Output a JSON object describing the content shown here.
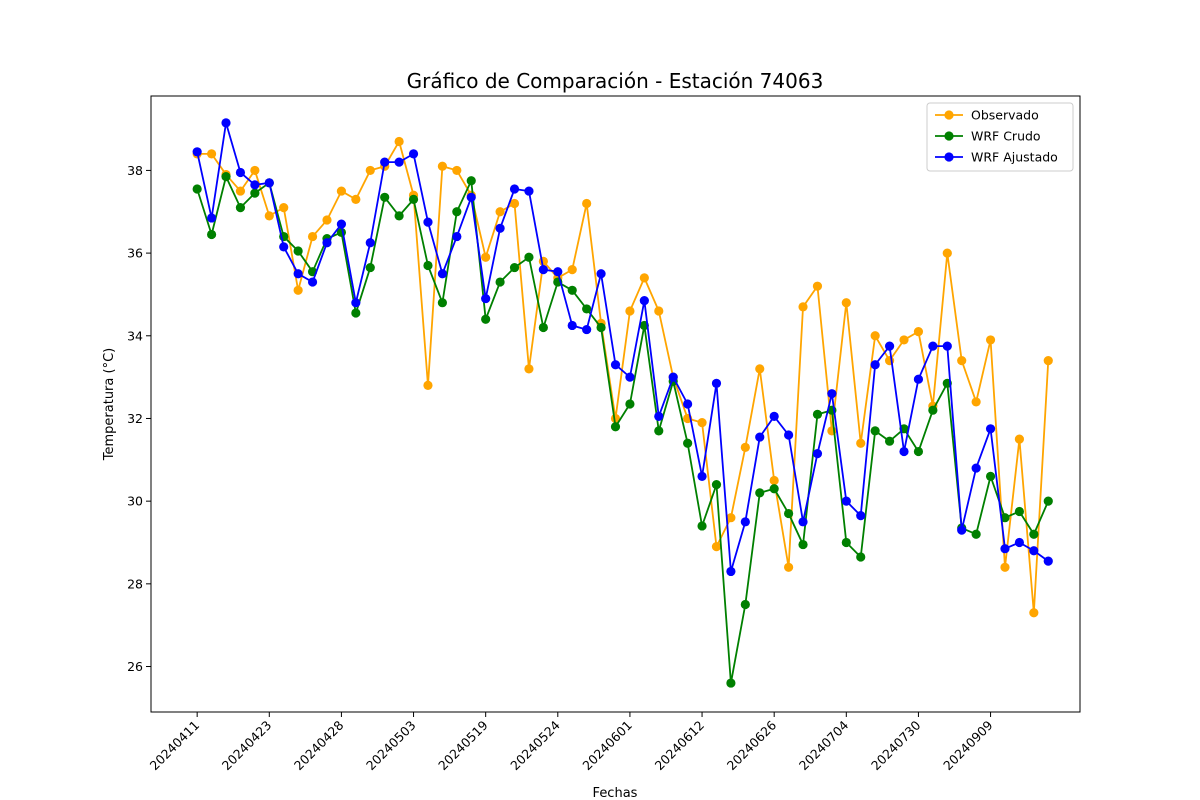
{
  "chart_data": {
    "type": "line",
    "title": "Gráfico de Comparación - Estación 74063",
    "xlabel": "Fechas",
    "ylabel": "Temperatura (°C)",
    "ylim": [
      24.9,
      39.8
    ],
    "yticks": [
      26,
      28,
      30,
      32,
      34,
      36,
      38
    ],
    "x_index_range": [
      -3.2,
      61.2
    ],
    "xtick_labels": [
      {
        "index": 0,
        "label": "20240411"
      },
      {
        "index": 5,
        "label": "20240423"
      },
      {
        "index": 10,
        "label": "20240428"
      },
      {
        "index": 15,
        "label": "20240503"
      },
      {
        "index": 20,
        "label": "20240519"
      },
      {
        "index": 25,
        "label": "20240524"
      },
      {
        "index": 30,
        "label": "20240601"
      },
      {
        "index": 35,
        "label": "20240612"
      },
      {
        "index": 40,
        "label": "20240626"
      },
      {
        "index": 45,
        "label": "20240704"
      },
      {
        "index": 50,
        "label": "20240730"
      },
      {
        "index": 55,
        "label": "20240909"
      }
    ],
    "legend_position": "top-right",
    "grid": false,
    "series": [
      {
        "name": "Observado",
        "color": "#ffa500",
        "values": [
          38.4,
          38.4,
          37.9,
          37.5,
          38.0,
          36.9,
          37.1,
          35.1,
          36.4,
          36.8,
          37.5,
          37.3,
          38.0,
          38.1,
          38.7,
          37.4,
          32.8,
          38.1,
          38.0,
          37.4,
          35.9,
          37.0,
          37.2,
          33.2,
          35.8,
          35.4,
          35.6,
          37.2,
          34.3,
          32.0,
          34.6,
          35.4,
          34.6,
          33.0,
          32.0,
          31.9,
          28.9,
          29.6,
          31.3,
          33.2,
          30.5,
          28.4,
          34.7,
          35.2,
          31.7,
          34.8,
          31.4,
          34.0,
          33.4,
          33.9,
          34.1,
          32.3,
          36.0,
          33.4,
          32.4,
          33.9,
          28.4,
          31.5,
          27.3,
          33.4
        ]
      },
      {
        "name": "WRF Crudo",
        "color": "#008000",
        "values": [
          37.55,
          36.45,
          37.85,
          37.1,
          37.45,
          37.7,
          36.4,
          36.05,
          35.55,
          36.35,
          36.5,
          34.55,
          35.65,
          37.35,
          36.9,
          37.3,
          35.7,
          34.8,
          37.0,
          37.75,
          34.4,
          35.3,
          35.65,
          35.9,
          34.2,
          35.3,
          35.1,
          34.65,
          34.2,
          31.8,
          32.35,
          34.25,
          31.7,
          32.9,
          31.4,
          29.4,
          30.4,
          25.6,
          27.5,
          30.2,
          30.3,
          29.7,
          28.95,
          32.1,
          32.2,
          29.0,
          28.65,
          31.7,
          31.45,
          31.75,
          31.2,
          32.2,
          32.85,
          29.35,
          29.2,
          30.6,
          29.6,
          29.75,
          29.2,
          30.0
        ]
      },
      {
        "name": "WRF Ajustado",
        "color": "#0000ff",
        "values": [
          38.45,
          36.85,
          39.15,
          37.95,
          37.65,
          37.7,
          36.15,
          35.5,
          35.3,
          36.25,
          36.7,
          34.8,
          36.25,
          38.2,
          38.2,
          38.4,
          36.75,
          35.5,
          36.4,
          37.35,
          34.9,
          36.6,
          37.55,
          37.5,
          35.6,
          35.55,
          34.25,
          34.15,
          35.5,
          33.3,
          33.0,
          34.85,
          32.05,
          33.0,
          32.35,
          30.6,
          32.85,
          28.3,
          29.5,
          31.55,
          32.05,
          31.6,
          29.5,
          31.15,
          32.6,
          30.0,
          29.65,
          33.3,
          33.75,
          31.2,
          32.95,
          33.75,
          33.75,
          29.3,
          30.8,
          31.75,
          28.85,
          29.0,
          28.8,
          28.55
        ]
      }
    ]
  }
}
